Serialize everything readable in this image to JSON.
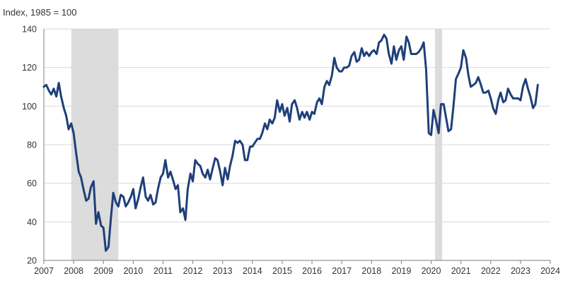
{
  "chart_data": {
    "type": "line",
    "unit_label": "Index, 1985 = 100",
    "xlim": [
      2007.0,
      2024.0
    ],
    "ylim": [
      20,
      140
    ],
    "y_ticks": [
      20,
      40,
      60,
      80,
      100,
      120,
      140
    ],
    "x_ticks": [
      2007,
      2008,
      2009,
      2010,
      2011,
      2012,
      2013,
      2014,
      2015,
      2016,
      2017,
      2018,
      2019,
      2020,
      2021,
      2022,
      2023,
      2024
    ],
    "grid": "horizontal",
    "legend": "none",
    "recession_shading": [
      {
        "start": 2007.92,
        "end": 2009.5
      },
      {
        "start": 2020.13,
        "end": 2020.37
      }
    ],
    "colors": {
      "line": "#1f3f7a",
      "recession": "#dcdcdc",
      "grid": "#d9d9d9",
      "axis": "#7f7f7f"
    },
    "series": [
      {
        "points": [
          [
            2007.0,
            110
          ],
          [
            2007.08,
            111
          ],
          [
            2007.17,
            108
          ],
          [
            2007.25,
            106
          ],
          [
            2007.33,
            109
          ],
          [
            2007.42,
            105
          ],
          [
            2007.5,
            112
          ],
          [
            2007.58,
            105
          ],
          [
            2007.67,
            99
          ],
          [
            2007.75,
            95
          ],
          [
            2007.83,
            88
          ],
          [
            2007.92,
            91
          ],
          [
            2008.0,
            86
          ],
          [
            2008.08,
            76
          ],
          [
            2008.17,
            66
          ],
          [
            2008.25,
            63
          ],
          [
            2008.33,
            57
          ],
          [
            2008.42,
            51
          ],
          [
            2008.5,
            52
          ],
          [
            2008.58,
            58
          ],
          [
            2008.67,
            61
          ],
          [
            2008.75,
            39
          ],
          [
            2008.83,
            45
          ],
          [
            2008.92,
            38
          ],
          [
            2009.0,
            37
          ],
          [
            2009.08,
            25
          ],
          [
            2009.17,
            27
          ],
          [
            2009.25,
            42
          ],
          [
            2009.33,
            55
          ],
          [
            2009.42,
            50
          ],
          [
            2009.5,
            48
          ],
          [
            2009.58,
            54
          ],
          [
            2009.67,
            53
          ],
          [
            2009.75,
            48
          ],
          [
            2009.83,
            50
          ],
          [
            2009.92,
            53
          ],
          [
            2010.0,
            57
          ],
          [
            2010.08,
            47
          ],
          [
            2010.17,
            52
          ],
          [
            2010.25,
            58
          ],
          [
            2010.33,
            63
          ],
          [
            2010.42,
            53
          ],
          [
            2010.5,
            51
          ],
          [
            2010.58,
            54
          ],
          [
            2010.67,
            49
          ],
          [
            2010.75,
            50
          ],
          [
            2010.83,
            57
          ],
          [
            2010.92,
            63
          ],
          [
            2011.0,
            65
          ],
          [
            2011.08,
            72
          ],
          [
            2011.17,
            63
          ],
          [
            2011.25,
            66
          ],
          [
            2011.33,
            62
          ],
          [
            2011.42,
            57
          ],
          [
            2011.5,
            59
          ],
          [
            2011.58,
            45
          ],
          [
            2011.67,
            47
          ],
          [
            2011.75,
            41
          ],
          [
            2011.83,
            57
          ],
          [
            2011.92,
            65
          ],
          [
            2012.0,
            61
          ],
          [
            2012.08,
            72
          ],
          [
            2012.17,
            70
          ],
          [
            2012.25,
            69
          ],
          [
            2012.33,
            65
          ],
          [
            2012.42,
            63
          ],
          [
            2012.5,
            67
          ],
          [
            2012.58,
            62
          ],
          [
            2012.67,
            68
          ],
          [
            2012.75,
            73
          ],
          [
            2012.83,
            72
          ],
          [
            2012.92,
            66
          ],
          [
            2013.0,
            59
          ],
          [
            2013.08,
            68
          ],
          [
            2013.17,
            62
          ],
          [
            2013.25,
            69
          ],
          [
            2013.33,
            74
          ],
          [
            2013.42,
            82
          ],
          [
            2013.5,
            81
          ],
          [
            2013.58,
            82
          ],
          [
            2013.67,
            80
          ],
          [
            2013.75,
            72
          ],
          [
            2013.83,
            72
          ],
          [
            2013.92,
            79
          ],
          [
            2014.0,
            79
          ],
          [
            2014.08,
            81
          ],
          [
            2014.17,
            83
          ],
          [
            2014.25,
            83
          ],
          [
            2014.33,
            86
          ],
          [
            2014.42,
            91
          ],
          [
            2014.5,
            88
          ],
          [
            2014.58,
            93
          ],
          [
            2014.67,
            91
          ],
          [
            2014.75,
            94
          ],
          [
            2014.83,
            103
          ],
          [
            2014.92,
            97
          ],
          [
            2015.0,
            101
          ],
          [
            2015.08,
            95
          ],
          [
            2015.17,
            99
          ],
          [
            2015.25,
            92
          ],
          [
            2015.33,
            101
          ],
          [
            2015.42,
            103
          ],
          [
            2015.5,
            99
          ],
          [
            2015.58,
            93
          ],
          [
            2015.67,
            97
          ],
          [
            2015.75,
            94
          ],
          [
            2015.83,
            97
          ],
          [
            2015.92,
            93
          ],
          [
            2016.0,
            97
          ],
          [
            2016.08,
            96
          ],
          [
            2016.17,
            102
          ],
          [
            2016.25,
            104
          ],
          [
            2016.33,
            101
          ],
          [
            2016.42,
            110
          ],
          [
            2016.5,
            113
          ],
          [
            2016.58,
            111
          ],
          [
            2016.67,
            116
          ],
          [
            2016.75,
            125
          ],
          [
            2016.83,
            120
          ],
          [
            2016.92,
            118
          ],
          [
            2017.0,
            118
          ],
          [
            2017.08,
            120
          ],
          [
            2017.17,
            120
          ],
          [
            2017.25,
            121
          ],
          [
            2017.33,
            126
          ],
          [
            2017.42,
            128
          ],
          [
            2017.5,
            123
          ],
          [
            2017.58,
            124
          ],
          [
            2017.67,
            130
          ],
          [
            2017.75,
            126
          ],
          [
            2017.83,
            128
          ],
          [
            2017.92,
            126
          ],
          [
            2018.0,
            128
          ],
          [
            2018.08,
            129
          ],
          [
            2018.17,
            127
          ],
          [
            2018.25,
            133
          ],
          [
            2018.33,
            134
          ],
          [
            2018.42,
            137
          ],
          [
            2018.5,
            135
          ],
          [
            2018.58,
            127
          ],
          [
            2018.67,
            122
          ],
          [
            2018.75,
            131
          ],
          [
            2018.83,
            124
          ],
          [
            2018.92,
            129
          ],
          [
            2019.0,
            131
          ],
          [
            2019.08,
            124
          ],
          [
            2019.17,
            136
          ],
          [
            2019.25,
            133
          ],
          [
            2019.33,
            127
          ],
          [
            2019.42,
            127
          ],
          [
            2019.5,
            127
          ],
          [
            2019.58,
            128
          ],
          [
            2019.67,
            130
          ],
          [
            2019.75,
            133
          ],
          [
            2019.83,
            119
          ],
          [
            2019.92,
            86
          ],
          [
            2020.0,
            85
          ],
          [
            2020.08,
            98
          ],
          [
            2020.17,
            92
          ],
          [
            2020.25,
            86
          ],
          [
            2020.33,
            101
          ],
          [
            2020.42,
            101
          ],
          [
            2020.5,
            94
          ],
          [
            2020.58,
            87
          ],
          [
            2020.67,
            88
          ],
          [
            2020.75,
            100
          ],
          [
            2020.83,
            114
          ],
          [
            2020.92,
            117
          ],
          [
            2021.0,
            120
          ],
          [
            2021.08,
            129
          ],
          [
            2021.17,
            125
          ],
          [
            2021.25,
            116
          ],
          [
            2021.33,
            110
          ],
          [
            2021.42,
            111
          ],
          [
            2021.5,
            112
          ],
          [
            2021.58,
            115
          ],
          [
            2021.67,
            111
          ],
          [
            2021.75,
            107
          ],
          [
            2021.83,
            107
          ],
          [
            2021.92,
            108
          ],
          [
            2022.0,
            104
          ],
          [
            2022.08,
            99
          ],
          [
            2022.17,
            96
          ],
          [
            2022.25,
            103
          ],
          [
            2022.33,
            107
          ],
          [
            2022.42,
            102
          ],
          [
            2022.5,
            103
          ],
          [
            2022.58,
            109
          ],
          [
            2022.67,
            106
          ],
          [
            2022.75,
            104
          ],
          [
            2022.83,
            104
          ],
          [
            2022.92,
            104
          ],
          [
            2023.0,
            103
          ],
          [
            2023.08,
            110
          ],
          [
            2023.17,
            114
          ],
          [
            2023.25,
            109
          ],
          [
            2023.33,
            105
          ],
          [
            2023.42,
            99
          ],
          [
            2023.5,
            101
          ],
          [
            2023.58,
            111
          ]
        ]
      }
    ]
  }
}
